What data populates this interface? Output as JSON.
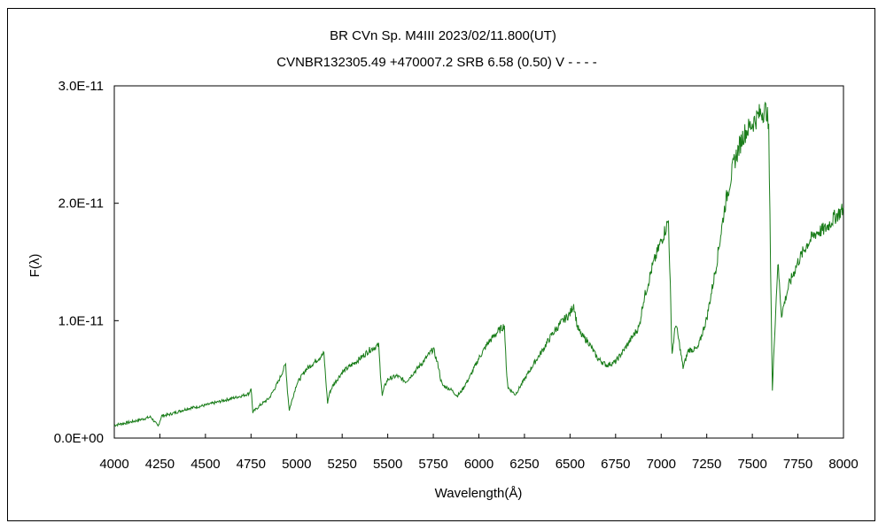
{
  "chart_data": {
    "type": "line",
    "title": "BR CVn    Sp. M4III    2023/02/11.800(UT)",
    "subtitle": "CVNBR132305.49 +470007.2 SRB 6.58 (0.50) V - - - -",
    "xlabel": "Wavelength(Å)",
    "ylabel": "F(λ)",
    "xlim": [
      4000,
      8000
    ],
    "ylim": [
      0,
      3e-11
    ],
    "x_ticks": [
      4000,
      4250,
      4500,
      4750,
      5000,
      5250,
      5500,
      5750,
      6000,
      6250,
      6500,
      6750,
      7000,
      7250,
      7500,
      7750,
      8000
    ],
    "x_tick_labels": [
      "4000",
      "4250",
      "4500",
      "4750",
      "5000",
      "5250",
      "5500",
      "5750",
      "6000",
      "6250",
      "6500",
      "6750",
      "7000",
      "7250",
      "7500",
      "7750",
      "8000"
    ],
    "y_ticks": [
      0,
      1e-11,
      2e-11,
      3e-11
    ],
    "y_tick_labels": [
      "0.0E+00",
      "1.0E-11",
      "2.0E-11",
      "3.0E-11"
    ],
    "grid": false,
    "line_color": "#1a7d1a",
    "series": [
      {
        "x": [
          4000,
          4100,
          4200,
          4240,
          4260,
          4300,
          4400,
          4500,
          4600,
          4700,
          4740,
          4750,
          4760,
          4800,
          4850,
          4900,
          4940,
          4950,
          4960,
          4980,
          5000,
          5050,
          5100,
          5150,
          5160,
          5170,
          5180,
          5200,
          5250,
          5300,
          5350,
          5400,
          5450,
          5460,
          5470,
          5480,
          5500,
          5550,
          5600,
          5650,
          5700,
          5750,
          5780,
          5790,
          5800,
          5850,
          5880,
          5900,
          5950,
          6000,
          6050,
          6100,
          6140,
          6150,
          6160,
          6180,
          6200,
          6250,
          6300,
          6350,
          6400,
          6450,
          6500,
          6520,
          6540,
          6560,
          6600,
          6650,
          6700,
          6750,
          6800,
          6850,
          6880,
          6900,
          6950,
          7000,
          7040,
          7050,
          7055,
          7060,
          7080,
          7100,
          7120,
          7150,
          7200,
          7250,
          7300,
          7350,
          7400,
          7450,
          7500,
          7550,
          7580,
          7590,
          7600,
          7610,
          7620,
          7640,
          7660,
          7700,
          7750,
          7800,
          7850,
          7900,
          7950,
          8000
        ],
        "y": [
          1.1e-12,
          1.4e-12,
          1.8e-12,
          1e-12,
          1.9e-12,
          2e-12,
          2.5e-12,
          2.8e-12,
          3.2e-12,
          3.6e-12,
          3.8e-12,
          4.3e-12,
          2.2e-12,
          2.8e-12,
          3.4e-12,
          4.8e-12,
          6.3e-12,
          4e-12,
          2.4e-12,
          3.5e-12,
          4.6e-12,
          5.8e-12,
          6.5e-12,
          7.2e-12,
          5e-12,
          3e-12,
          3.8e-12,
          4.5e-12,
          5.6e-12,
          6.2e-12,
          6.8e-12,
          7.5e-12,
          7.9e-12,
          5.5e-12,
          3.6e-12,
          4.3e-12,
          5e-12,
          5.3e-12,
          4.8e-12,
          5.7e-12,
          6.6e-12,
          7.6e-12,
          6e-12,
          5e-12,
          4.5e-12,
          4.1e-12,
          3.6e-12,
          3.9e-12,
          5.2e-12,
          6.8e-12,
          8.1e-12,
          9e-12,
          9.6e-12,
          6e-12,
          4.3e-12,
          4e-12,
          3.7e-12,
          5e-12,
          6.3e-12,
          7.5e-12,
          8.8e-12,
          9.8e-12,
          1.06e-11,
          1.14e-11,
          9.5e-12,
          8.8e-12,
          8.2e-12,
          6.8e-12,
          6.2e-12,
          6.5e-12,
          7.6e-12,
          8.8e-12,
          9.5e-12,
          1.15e-11,
          1.45e-11,
          1.68e-11,
          1.85e-11,
          1.3e-11,
          9.5e-12,
          7.2e-12,
          9.8e-12,
          8e-12,
          6e-12,
          7.5e-12,
          7.6e-12,
          1.02e-11,
          1.45e-11,
          1.98e-11,
          2.35e-11,
          2.58e-11,
          2.68e-11,
          2.78e-11,
          2.79e-11,
          2.6e-11,
          1.5e-11,
          4e-12,
          8e-12,
          1.5e-11,
          1.05e-11,
          1.3e-11,
          1.5e-11,
          1.65e-11,
          1.75e-11,
          1.78e-11,
          1.88e-11,
          1.95e-11
        ]
      }
    ]
  }
}
